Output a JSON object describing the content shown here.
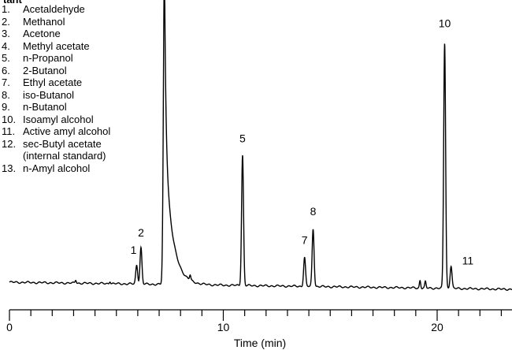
{
  "chart_data": {
    "type": "line",
    "header_fragment": "tant",
    "xlabel": "Time (min)",
    "xlim": [
      0,
      23.5
    ],
    "ylim": [
      0,
      100
    ],
    "x_ticks": [
      0,
      10,
      20
    ],
    "x_tick_labels": [
      "0",
      "10",
      "20"
    ],
    "legend": [
      {
        "num": "1.",
        "name": "Acetaldehyde"
      },
      {
        "num": "2.",
        "name": "Methanol"
      },
      {
        "num": "3.",
        "name": "Acetone"
      },
      {
        "num": "4.",
        "name": "Methyl acetate"
      },
      {
        "num": "5.",
        "name": "n-Propanol"
      },
      {
        "num": "6.",
        "name": "2-Butanol"
      },
      {
        "num": "7.",
        "name": "Ethyl acetate"
      },
      {
        "num": "8.",
        "name": "iso-Butanol"
      },
      {
        "num": "9.",
        "name": "n-Butanol"
      },
      {
        "num": "10.",
        "name": "Isoamyl alcohol"
      },
      {
        "num": "11.",
        "name": "Active amyl alcohol"
      },
      {
        "num": "12.",
        "name": "sec-Butyl acetate"
      },
      {
        "num": "",
        "name": "(internal standard)"
      },
      {
        "num": "13.",
        "name": "n-Amyl alcohol"
      }
    ],
    "peaks": [
      {
        "label": "1",
        "time": 5.95,
        "height": 7.5
      },
      {
        "label": "2",
        "time": 6.15,
        "height": 14.5
      },
      {
        "label": "",
        "time": 7.25,
        "height": 130
      },
      {
        "label": "5",
        "time": 10.9,
        "height": 52
      },
      {
        "label": "7",
        "time": 13.8,
        "height": 11.5
      },
      {
        "label": "8",
        "time": 14.2,
        "height": 23
      },
      {
        "label": "10",
        "time": 20.35,
        "height": 98
      },
      {
        "label": "11",
        "time": 20.65,
        "height": 9
      }
    ],
    "minor_peaks": [
      {
        "time": 3.1,
        "height": 1.3
      },
      {
        "time": 4.7,
        "height": 1.0
      },
      {
        "time": 8.45,
        "height": 2.0
      },
      {
        "time": 19.2,
        "height": 3.0
      },
      {
        "time": 19.45,
        "height": 2.5
      }
    ]
  }
}
